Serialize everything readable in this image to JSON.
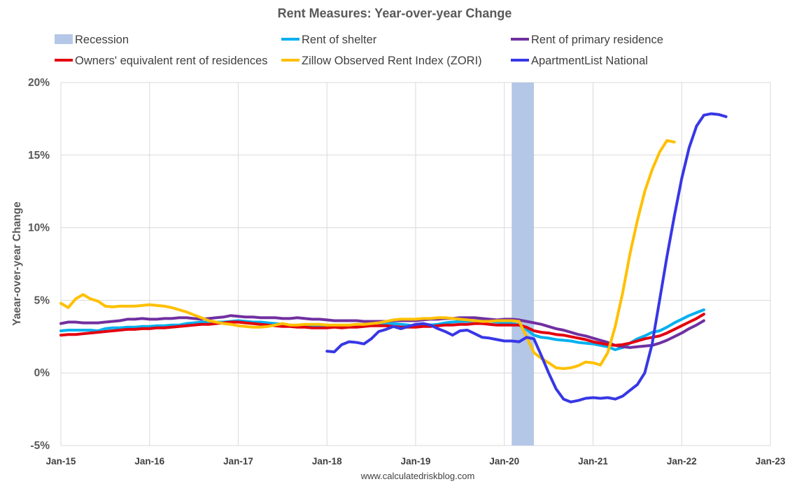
{
  "chart_data": {
    "type": "line",
    "title": "Rent Measures: Year-over-year Change",
    "ylabel": "Yaear-over-year Change",
    "xlabel": "",
    "source": "www.calculatedriskblog.com",
    "ylim": [
      -5,
      20
    ],
    "yticks": [
      -5,
      0,
      5,
      10,
      15,
      20
    ],
    "ytick_labels": [
      "-5%",
      "0%",
      "5%",
      "10%",
      "15%",
      "20%"
    ],
    "xlim": [
      "2015-01",
      "2023-01"
    ],
    "xtick_labels": [
      "Jan-15",
      "Jan-16",
      "Jan-17",
      "Jan-18",
      "Jan-19",
      "Jan-20",
      "Jan-21",
      "Jan-22",
      "Jan-23"
    ],
    "grid": true,
    "legend_position": "top",
    "recession": {
      "name": "Recession",
      "start": "2020-02",
      "end": "2020-04",
      "color": "#b4c7e7"
    },
    "series": [
      {
        "name": "Rent of shelter",
        "color": "#00b0f0",
        "start": "2015-01",
        "values": [
          2.9,
          2.95,
          2.95,
          2.95,
          2.95,
          2.9,
          3.05,
          3.1,
          3.1,
          3.15,
          3.15,
          3.2,
          3.2,
          3.25,
          3.25,
          3.3,
          3.3,
          3.4,
          3.45,
          3.5,
          3.5,
          3.5,
          3.5,
          3.55,
          3.6,
          3.55,
          3.5,
          3.5,
          3.45,
          3.4,
          3.35,
          3.3,
          3.25,
          3.25,
          3.2,
          3.2,
          3.25,
          3.2,
          3.2,
          3.25,
          3.3,
          3.3,
          3.35,
          3.35,
          3.4,
          3.4,
          3.35,
          3.3,
          3.2,
          3.25,
          3.3,
          3.35,
          3.45,
          3.5,
          3.55,
          3.55,
          3.6,
          3.6,
          3.55,
          3.5,
          3.45,
          3.4,
          3.3,
          3.0,
          2.6,
          2.45,
          2.4,
          2.3,
          2.25,
          2.2,
          2.1,
          2.05,
          2.0,
          1.9,
          1.8,
          1.6,
          1.75,
          2.05,
          2.35,
          2.55,
          2.8,
          2.9,
          3.15,
          3.45,
          3.7,
          3.95,
          4.15,
          4.35
        ]
      },
      {
        "name": "Rent of primary residence",
        "color": "#7030a0",
        "start": "2015-01",
        "values": [
          3.4,
          3.5,
          3.5,
          3.45,
          3.45,
          3.45,
          3.5,
          3.55,
          3.6,
          3.7,
          3.7,
          3.75,
          3.7,
          3.7,
          3.75,
          3.75,
          3.8,
          3.8,
          3.75,
          3.7,
          3.75,
          3.8,
          3.85,
          3.95,
          3.9,
          3.85,
          3.85,
          3.8,
          3.8,
          3.8,
          3.75,
          3.75,
          3.8,
          3.75,
          3.7,
          3.7,
          3.65,
          3.6,
          3.6,
          3.6,
          3.6,
          3.55,
          3.55,
          3.55,
          3.55,
          3.6,
          3.6,
          3.6,
          3.6,
          3.65,
          3.7,
          3.7,
          3.75,
          3.75,
          3.8,
          3.8,
          3.8,
          3.75,
          3.7,
          3.65,
          3.7,
          3.7,
          3.65,
          3.55,
          3.45,
          3.35,
          3.2,
          3.05,
          2.95,
          2.8,
          2.65,
          2.55,
          2.4,
          2.25,
          2.1,
          1.9,
          1.8,
          1.75,
          1.8,
          1.85,
          1.9,
          2.05,
          2.25,
          2.5,
          2.75,
          3.05,
          3.3,
          3.6
        ]
      },
      {
        "name": "Owners' equivalent rent of residences",
        "color": "#e3000f",
        "start": "2015-01",
        "values": [
          2.6,
          2.65,
          2.65,
          2.7,
          2.75,
          2.8,
          2.85,
          2.9,
          2.95,
          3.0,
          3.0,
          3.05,
          3.05,
          3.1,
          3.1,
          3.15,
          3.2,
          3.25,
          3.3,
          3.35,
          3.35,
          3.4,
          3.45,
          3.5,
          3.5,
          3.45,
          3.4,
          3.35,
          3.3,
          3.25,
          3.2,
          3.2,
          3.15,
          3.15,
          3.1,
          3.1,
          3.1,
          3.15,
          3.1,
          3.15,
          3.15,
          3.2,
          3.25,
          3.25,
          3.25,
          3.2,
          3.15,
          3.15,
          3.15,
          3.2,
          3.2,
          3.25,
          3.3,
          3.3,
          3.35,
          3.35,
          3.4,
          3.4,
          3.35,
          3.3,
          3.3,
          3.3,
          3.3,
          3.15,
          2.9,
          2.8,
          2.75,
          2.65,
          2.6,
          2.5,
          2.4,
          2.3,
          2.15,
          2.05,
          1.95,
          1.9,
          1.95,
          2.05,
          2.2,
          2.35,
          2.45,
          2.55,
          2.75,
          3.0,
          3.25,
          3.5,
          3.75,
          4.05
        ]
      },
      {
        "name": "Zillow Observed Rent Index (ZORI)",
        "color": "#ffc000",
        "start": "2015-01",
        "values": [
          4.8,
          4.5,
          5.1,
          5.4,
          5.1,
          4.95,
          4.6,
          4.55,
          4.6,
          4.6,
          4.6,
          4.65,
          4.7,
          4.65,
          4.6,
          4.5,
          4.35,
          4.2,
          4.0,
          3.8,
          3.6,
          3.5,
          3.4,
          3.35,
          3.25,
          3.2,
          3.15,
          3.15,
          3.2,
          3.3,
          3.4,
          3.3,
          3.3,
          3.35,
          3.35,
          3.35,
          3.3,
          3.3,
          3.3,
          3.3,
          3.35,
          3.35,
          3.4,
          3.45,
          3.55,
          3.65,
          3.7,
          3.7,
          3.7,
          3.75,
          3.75,
          3.8,
          3.8,
          3.75,
          3.7,
          3.65,
          3.6,
          3.55,
          3.55,
          3.6,
          3.6,
          3.6,
          3.55,
          2.5,
          1.4,
          1.0,
          0.7,
          0.35,
          0.3,
          0.35,
          0.5,
          0.75,
          0.7,
          0.55,
          1.4,
          3.2,
          5.5,
          8.2,
          10.5,
          12.5,
          14.0,
          15.2,
          16.0,
          15.9
        ]
      },
      {
        "name": "ApartmentList National",
        "color": "#3737e6",
        "start": "2018-01",
        "values": [
          1.5,
          1.45,
          1.95,
          2.15,
          2.1,
          2.0,
          2.35,
          2.85,
          3.0,
          3.2,
          3.05,
          3.2,
          3.35,
          3.4,
          3.3,
          3.05,
          2.85,
          2.6,
          2.9,
          2.95,
          2.7,
          2.45,
          2.4,
          2.3,
          2.2,
          2.2,
          2.15,
          2.45,
          2.35,
          1.2,
          0.0,
          -1.1,
          -1.8,
          -2.0,
          -1.9,
          -1.75,
          -1.7,
          -1.75,
          -1.7,
          -1.8,
          -1.6,
          -1.2,
          -0.8,
          0.0,
          2.0,
          5.0,
          8.0,
          10.8,
          13.4,
          15.5,
          17.0,
          17.75,
          17.85,
          17.8,
          17.65
        ]
      }
    ]
  }
}
